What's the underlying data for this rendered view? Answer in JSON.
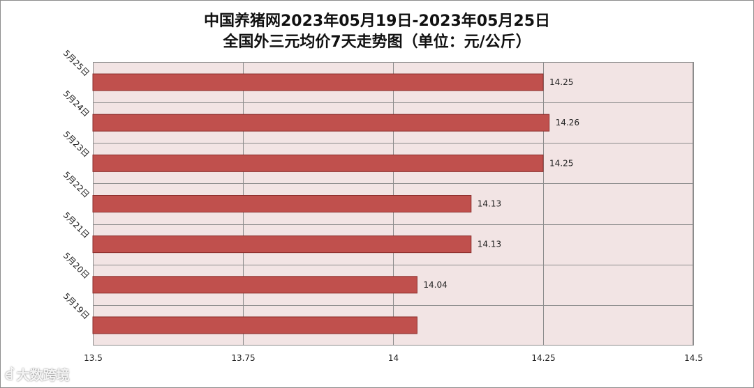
{
  "chart_data": {
    "type": "bar",
    "orientation": "horizontal",
    "title": "中国养猪网2023年05月19日-2023年05月25日",
    "subtitle": "全国外三元均价7天走势图（单位：元/公斤）",
    "categories": [
      "5月25日",
      "5月24日",
      "5月23日",
      "5月22日",
      "5月21日",
      "5月20日",
      "5月19日"
    ],
    "values": [
      14.25,
      14.26,
      14.25,
      14.13,
      14.13,
      14.04,
      14.04
    ],
    "data_labels": [
      "14.25",
      "14.26",
      "14.25",
      "14.13",
      "14.13",
      "14.04",
      ""
    ],
    "x_ticks": [
      "13.5",
      "13.75",
      "14",
      "14.25",
      "14.5"
    ],
    "xlim": [
      13.5,
      14.5
    ],
    "grid": true,
    "colors": {
      "bar": "#c0504d",
      "bar_edge": "#8b2e2c",
      "plot_bg": "#f2e4e4",
      "grid": "#8c8c8c"
    }
  },
  "watermark": {
    "logo": "ꀸ",
    "text": "大数跨境"
  }
}
